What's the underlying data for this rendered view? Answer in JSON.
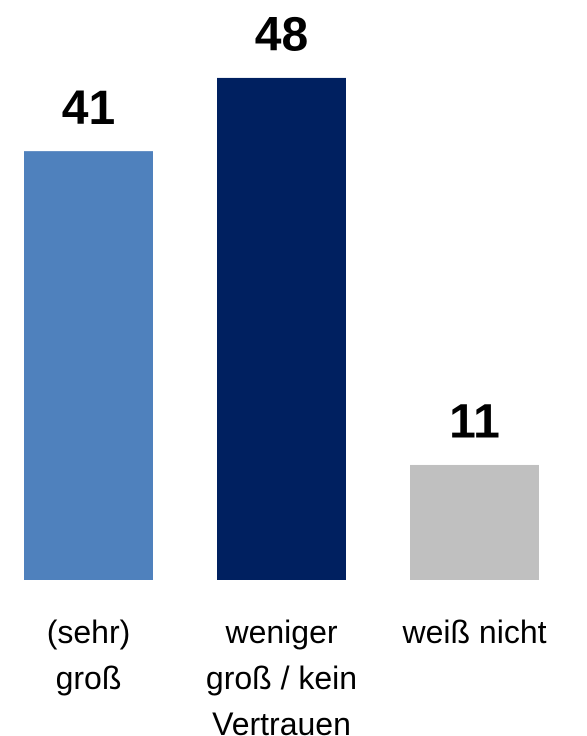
{
  "chart_data": {
    "type": "bar",
    "categories": [
      "(sehr) groß",
      "weniger groß / kein Vertrauen",
      "weiß nicht"
    ],
    "values": [
      41,
      48,
      11
    ],
    "colors": [
      "#4f81bd",
      "#002060",
      "#c0c0c0"
    ]
  }
}
